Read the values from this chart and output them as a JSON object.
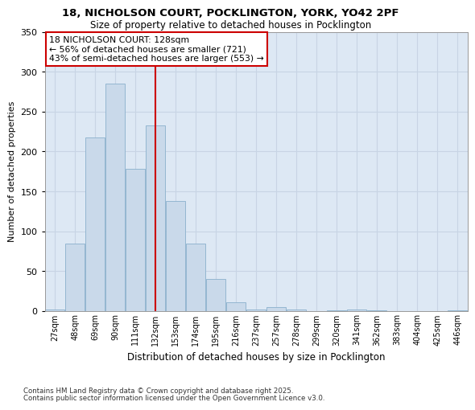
{
  "title1": "18, NICHOLSON COURT, POCKLINGTON, YORK, YO42 2PF",
  "title2": "Size of property relative to detached houses in Pocklington",
  "xlabel": "Distribution of detached houses by size in Pocklington",
  "ylabel": "Number of detached properties",
  "categories": [
    "27sqm",
    "48sqm",
    "69sqm",
    "90sqm",
    "111sqm",
    "132sqm",
    "153sqm",
    "174sqm",
    "195sqm",
    "216sqm",
    "237sqm",
    "257sqm",
    "278sqm",
    "299sqm",
    "320sqm",
    "341sqm",
    "362sqm",
    "383sqm",
    "404sqm",
    "425sqm",
    "446sqm"
  ],
  "values": [
    2,
    85,
    218,
    285,
    178,
    233,
    138,
    85,
    40,
    11,
    2,
    5,
    2,
    0,
    1,
    2,
    1,
    0,
    0,
    0,
    1
  ],
  "bar_color": "#c9d9ea",
  "bar_edge_color": "#8ab0cc",
  "vline_color": "#cc0000",
  "annotation_title": "18 NICHOLSON COURT: 128sqm",
  "annotation_line1": "← 56% of detached houses are smaller (721)",
  "annotation_line2": "43% of semi-detached houses are larger (553) →",
  "annotation_box_facecolor": "white",
  "annotation_box_edgecolor": "#cc0000",
  "ylim": [
    0,
    350
  ],
  "yticks": [
    0,
    50,
    100,
    150,
    200,
    250,
    300,
    350
  ],
  "grid_color": "#c8d4e4",
  "background_color": "#dde8f4",
  "footnote1": "Contains HM Land Registry data © Crown copyright and database right 2025.",
  "footnote2": "Contains public sector information licensed under the Open Government Licence v3.0."
}
